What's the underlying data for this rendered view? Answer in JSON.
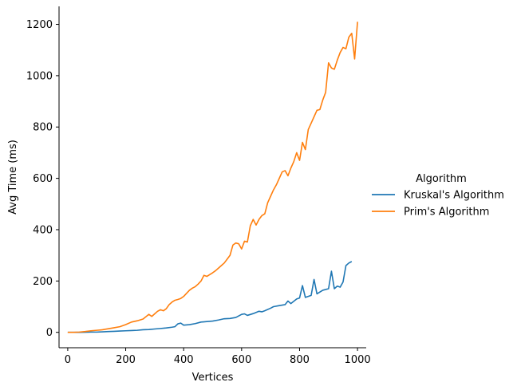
{
  "chart_data": {
    "type": "line",
    "xlabel": "Vertices",
    "ylabel": "Avg Time (ms)",
    "xlim": [
      -30,
      1030
    ],
    "ylim": [
      -60,
      1270
    ],
    "xticks": [
      0,
      200,
      400,
      600,
      800,
      1000
    ],
    "yticks": [
      0,
      200,
      400,
      600,
      800,
      1000,
      1200
    ],
    "grid": false,
    "legend": {
      "title": "Algorithm",
      "placement": "right"
    },
    "series": [
      {
        "name": "Kruskal's Algorithm",
        "color": "#1f77b4",
        "points": [
          [
            0,
            0
          ],
          [
            20,
            0
          ],
          [
            40,
            0
          ],
          [
            60,
            0.5
          ],
          [
            80,
            1
          ],
          [
            100,
            1
          ],
          [
            120,
            2
          ],
          [
            140,
            3
          ],
          [
            160,
            4
          ],
          [
            180,
            5
          ],
          [
            200,
            6
          ],
          [
            220,
            7
          ],
          [
            240,
            8
          ],
          [
            260,
            10
          ],
          [
            280,
            11
          ],
          [
            300,
            13
          ],
          [
            320,
            15
          ],
          [
            340,
            17
          ],
          [
            360,
            20
          ],
          [
            370,
            22
          ],
          [
            380,
            33
          ],
          [
            390,
            36
          ],
          [
            400,
            28
          ],
          [
            420,
            30
          ],
          [
            440,
            34
          ],
          [
            460,
            40
          ],
          [
            480,
            42
          ],
          [
            500,
            44
          ],
          [
            520,
            48
          ],
          [
            540,
            53
          ],
          [
            560,
            54
          ],
          [
            580,
            58
          ],
          [
            600,
            70
          ],
          [
            610,
            72
          ],
          [
            620,
            66
          ],
          [
            640,
            73
          ],
          [
            660,
            82
          ],
          [
            670,
            80
          ],
          [
            680,
            84
          ],
          [
            700,
            94
          ],
          [
            710,
            100
          ],
          [
            730,
            104
          ],
          [
            750,
            108
          ],
          [
            760,
            122
          ],
          [
            770,
            112
          ],
          [
            790,
            130
          ],
          [
            800,
            134
          ],
          [
            810,
            182
          ],
          [
            820,
            136
          ],
          [
            840,
            144
          ],
          [
            850,
            206
          ],
          [
            860,
            150
          ],
          [
            880,
            164
          ],
          [
            900,
            170
          ],
          [
            910,
            238
          ],
          [
            920,
            170
          ],
          [
            930,
            180
          ],
          [
            940,
            176
          ],
          [
            950,
            196
          ],
          [
            960,
            260
          ],
          [
            970,
            270
          ],
          [
            980,
            276
          ]
        ]
      },
      {
        "name": "Prim's Algorithm",
        "color": "#ff7f0e",
        "points": [
          [
            0,
            0
          ],
          [
            20,
            0
          ],
          [
            40,
            1
          ],
          [
            60,
            3
          ],
          [
            80,
            6
          ],
          [
            100,
            8
          ],
          [
            120,
            10
          ],
          [
            140,
            14
          ],
          [
            160,
            18
          ],
          [
            180,
            22
          ],
          [
            200,
            30
          ],
          [
            220,
            40
          ],
          [
            240,
            45
          ],
          [
            260,
            52
          ],
          [
            280,
            70
          ],
          [
            290,
            62
          ],
          [
            300,
            72
          ],
          [
            310,
            82
          ],
          [
            320,
            88
          ],
          [
            330,
            84
          ],
          [
            340,
            92
          ],
          [
            350,
            108
          ],
          [
            360,
            118
          ],
          [
            370,
            125
          ],
          [
            380,
            128
          ],
          [
            390,
            132
          ],
          [
            400,
            140
          ],
          [
            410,
            152
          ],
          [
            420,
            164
          ],
          [
            430,
            172
          ],
          [
            440,
            178
          ],
          [
            450,
            188
          ],
          [
            460,
            200
          ],
          [
            470,
            222
          ],
          [
            480,
            218
          ],
          [
            490,
            225
          ],
          [
            500,
            232
          ],
          [
            510,
            240
          ],
          [
            520,
            250
          ],
          [
            530,
            260
          ],
          [
            540,
            270
          ],
          [
            550,
            285
          ],
          [
            560,
            300
          ],
          [
            570,
            340
          ],
          [
            580,
            348
          ],
          [
            590,
            345
          ],
          [
            600,
            325
          ],
          [
            610,
            355
          ],
          [
            620,
            352
          ],
          [
            630,
            415
          ],
          [
            640,
            440
          ],
          [
            650,
            418
          ],
          [
            660,
            440
          ],
          [
            670,
            455
          ],
          [
            680,
            462
          ],
          [
            690,
            505
          ],
          [
            700,
            530
          ],
          [
            710,
            555
          ],
          [
            720,
            575
          ],
          [
            730,
            600
          ],
          [
            740,
            625
          ],
          [
            750,
            630
          ],
          [
            760,
            610
          ],
          [
            770,
            640
          ],
          [
            780,
            665
          ],
          [
            790,
            700
          ],
          [
            800,
            670
          ],
          [
            810,
            740
          ],
          [
            820,
            712
          ],
          [
            830,
            790
          ],
          [
            840,
            815
          ],
          [
            850,
            840
          ],
          [
            860,
            865
          ],
          [
            870,
            868
          ],
          [
            880,
            905
          ],
          [
            890,
            935
          ],
          [
            900,
            1050
          ],
          [
            910,
            1030
          ],
          [
            920,
            1025
          ],
          [
            930,
            1060
          ],
          [
            940,
            1090
          ],
          [
            950,
            1110
          ],
          [
            960,
            1105
          ],
          [
            970,
            1150
          ],
          [
            980,
            1165
          ],
          [
            990,
            1065
          ],
          [
            1000,
            1210
          ]
        ]
      }
    ]
  }
}
